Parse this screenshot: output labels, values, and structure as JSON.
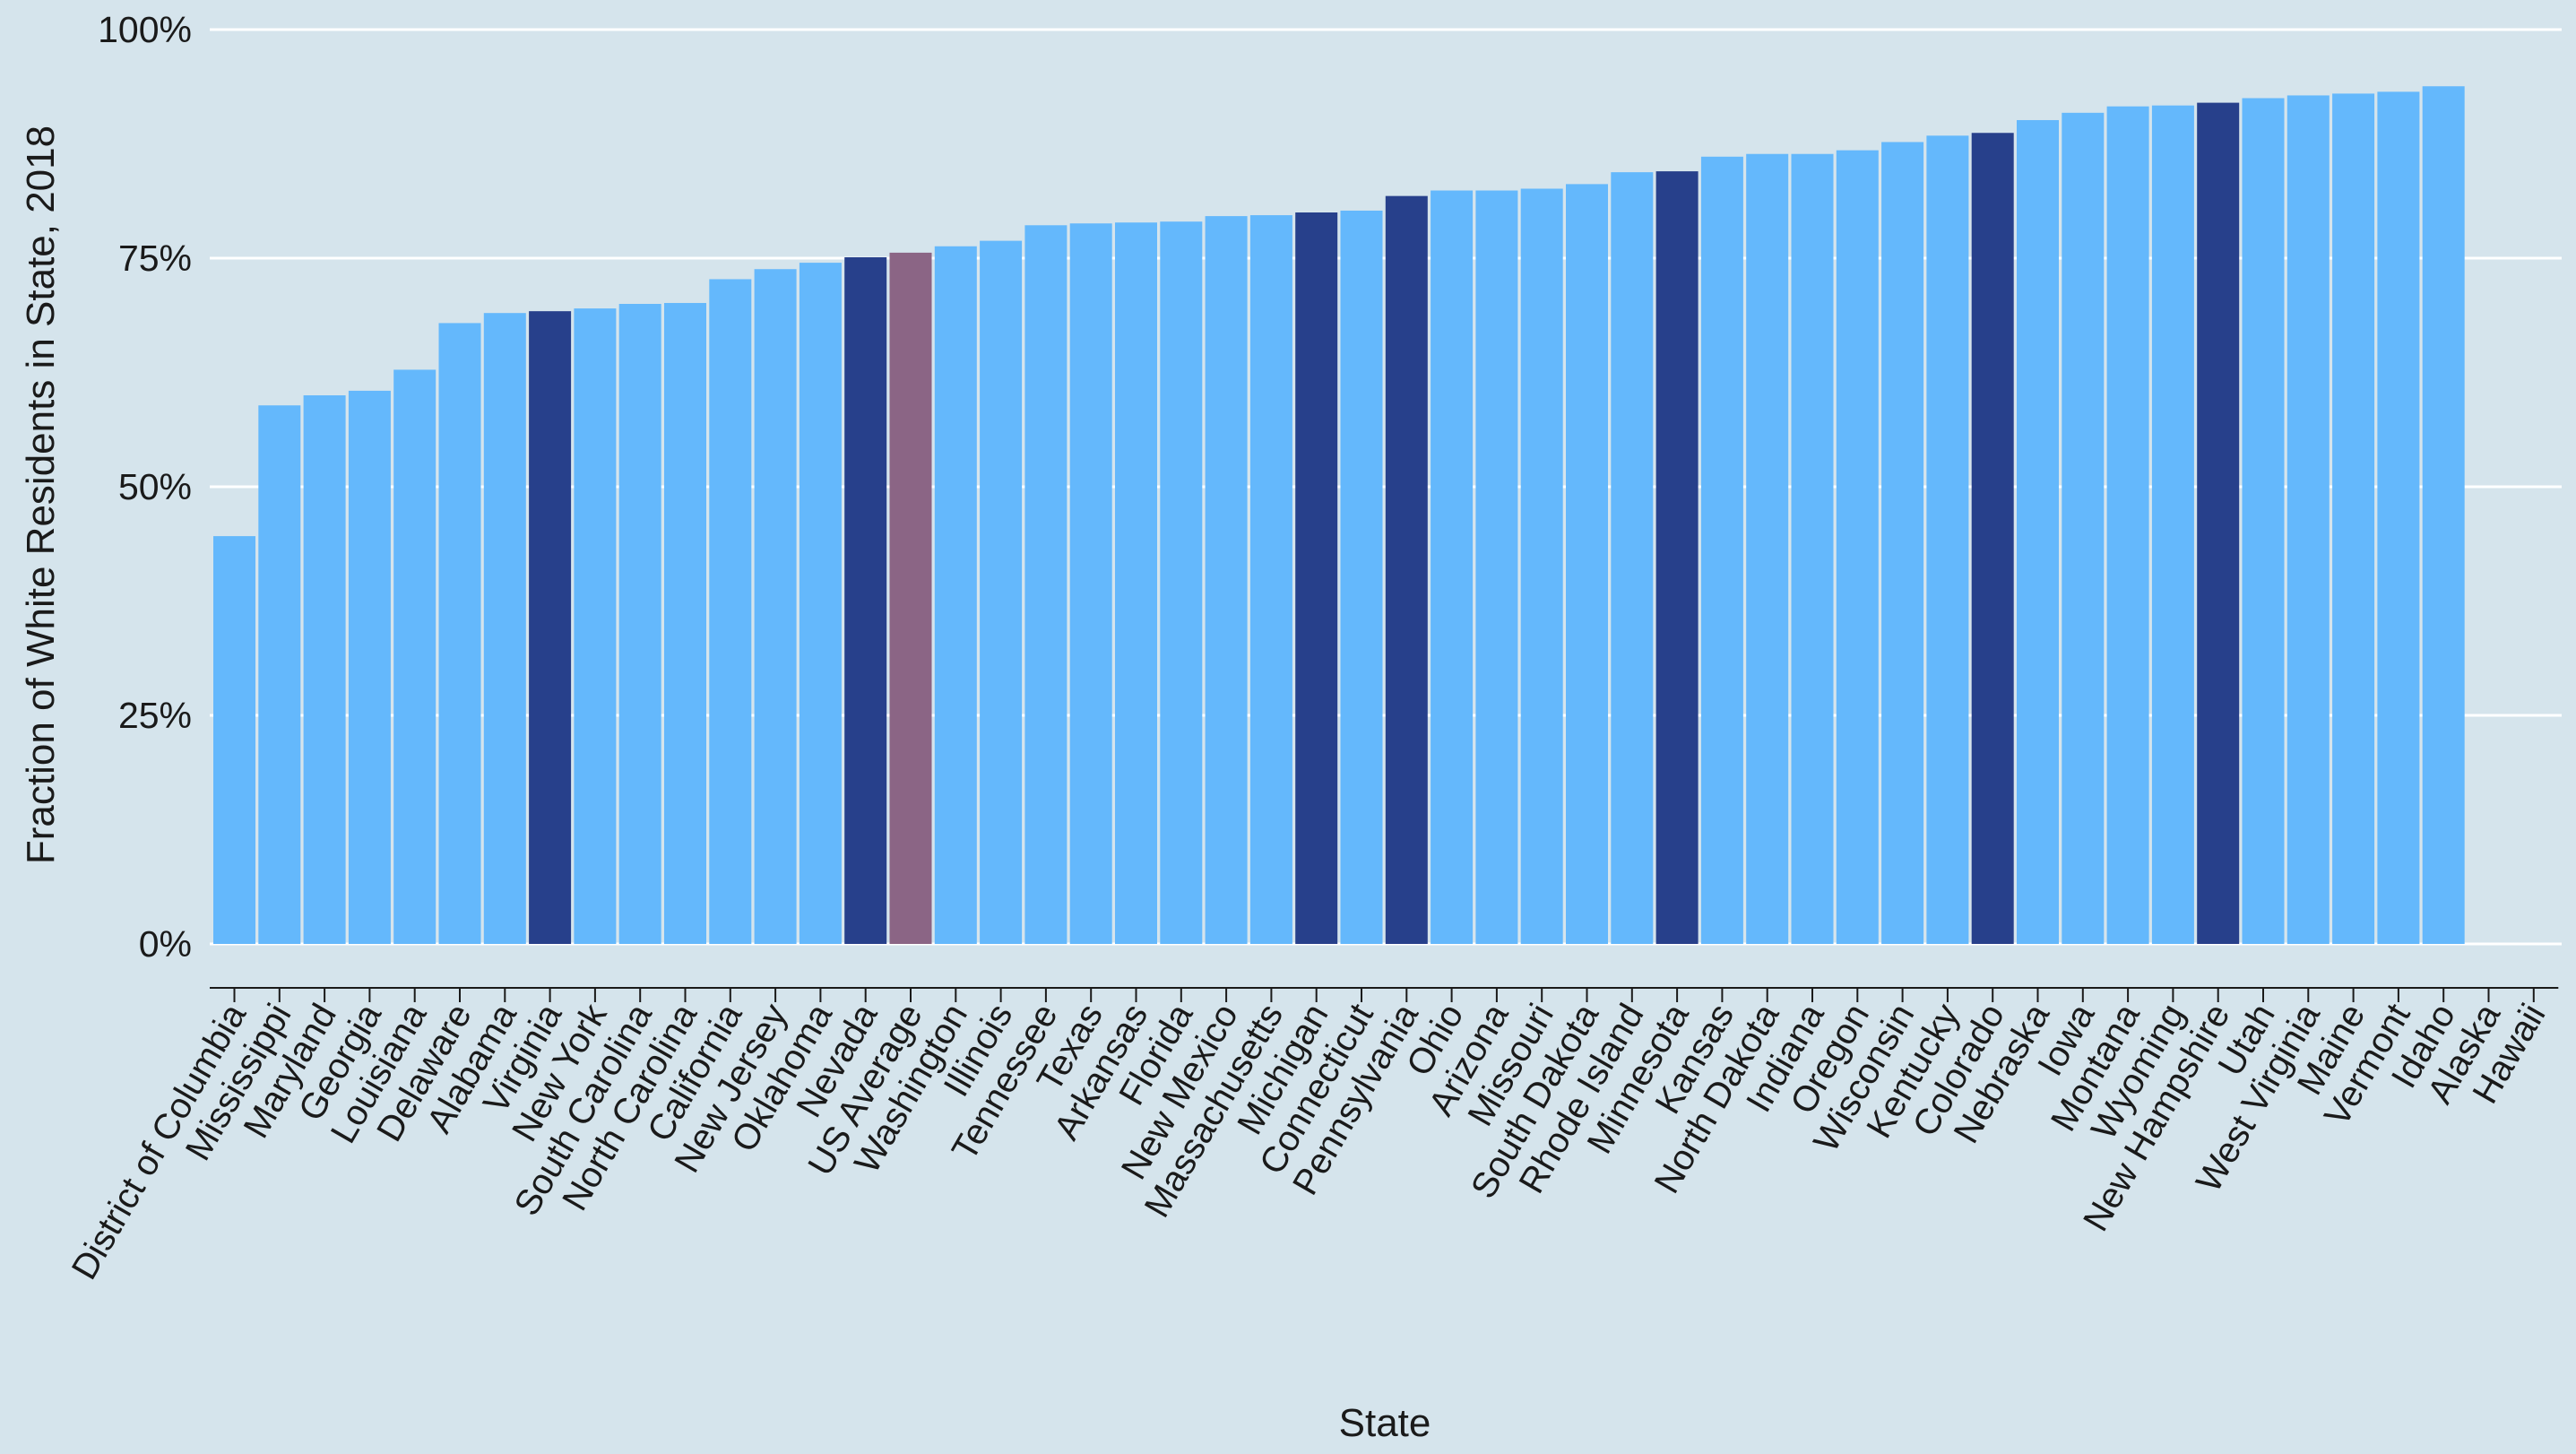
{
  "chart_data": {
    "type": "bar",
    "xlabel": "State",
    "ylabel": "Fraction of White Residents in State, 2018",
    "ylim": [
      0,
      1
    ],
    "yticks": [
      0,
      0.25,
      0.5,
      0.75,
      1.0
    ],
    "ytick_labels": [
      "0%",
      "25%",
      "50%",
      "75%",
      "100%"
    ],
    "grid": "horizontal",
    "colors": {
      "default": "#64b8fc",
      "highlight": "#27408b",
      "average": "#8b6585",
      "background": "#d5e4ec",
      "grid": "#ffffff"
    },
    "categories": [
      "District of Columbia",
      "Mississippi",
      "Maryland",
      "Georgia",
      "Louisiana",
      "Delaware",
      "Alabama",
      "Virginia",
      "New York",
      "South Carolina",
      "North Carolina",
      "California",
      "New Jersey",
      "Oklahoma",
      "Nevada",
      "US Average",
      "Washington",
      "Illinois",
      "Tennessee",
      "Texas",
      "Arkansas",
      "Florida",
      "New Mexico",
      "Massachusetts",
      "Michigan",
      "Connecticut",
      "Pennsylvania",
      "Ohio",
      "Arizona",
      "Missouri",
      "South Dakota",
      "Rhode Island",
      "Minnesota",
      "Kansas",
      "North Dakota",
      "Indiana",
      "Oregon",
      "Wisconsin",
      "Kentucky",
      "Colorado",
      "Nebraska",
      "Iowa",
      "Montana",
      "Wyoming",
      "New Hampshire",
      "Utah",
      "West Virginia",
      "Maine",
      "Vermont",
      "Idaho",
      "Alaska",
      "Hawaii"
    ],
    "values": [
      0.446,
      0.589,
      0.6,
      0.605,
      0.628,
      0.679,
      0.69,
      0.692,
      0.695,
      0.7,
      0.701,
      0.727,
      0.738,
      0.745,
      0.751,
      0.756,
      0.763,
      0.769,
      0.786,
      0.788,
      0.789,
      0.79,
      0.796,
      0.797,
      0.8,
      0.802,
      0.818,
      0.824,
      0.824,
      0.826,
      0.831,
      0.844,
      0.845,
      0.861,
      0.864,
      0.864,
      0.868,
      0.877,
      0.884,
      0.887,
      0.901,
      0.909,
      0.916,
      0.917,
      0.92,
      0.925,
      0.928,
      0.93,
      0.932,
      0.938,
      null,
      null
    ],
    "highlight": [
      "Virginia",
      "Nevada",
      "Michigan",
      "Pennsylvania",
      "Minnesota",
      "Colorado",
      "New Hampshire"
    ],
    "average": [
      "US Average"
    ]
  }
}
